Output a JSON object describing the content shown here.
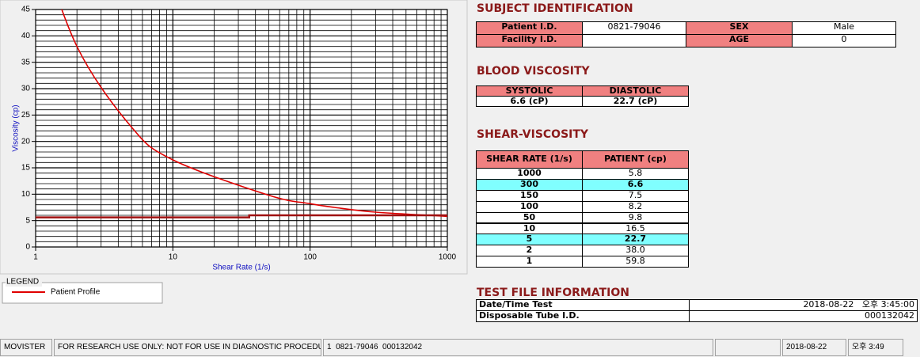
{
  "chart_data": {
    "type": "line",
    "x_label": "Shear Rate (1/s)",
    "y_label": "Viscosity (cp)",
    "xlim": [
      1,
      1000
    ],
    "ylim": [
      0,
      45
    ],
    "xticks": [
      1,
      10,
      100,
      1000
    ],
    "yticks": [
      0,
      5,
      10,
      15,
      20,
      25,
      30,
      35,
      40,
      45
    ],
    "log_x": true,
    "grid": true,
    "minor_grid": true,
    "legend_title": "LEGEND",
    "legend_position": "below",
    "series": [
      {
        "name": "Patient Profile",
        "color": "#e00000",
        "x": [
          1,
          2,
          5,
          10,
          50,
          100,
          150,
          300,
          1000
        ],
        "values": [
          59.8,
          38.0,
          22.7,
          16.5,
          9.8,
          8.2,
          7.5,
          6.6,
          5.8
        ]
      },
      {
        "color": "#a01010",
        "x": [
          1,
          36,
          36,
          1000
        ],
        "values": [
          5.6,
          5.6,
          6,
          6
        ]
      }
    ]
  },
  "subject": {
    "title": "SUBJECT IDENTIFICATION",
    "rows": [
      [
        {
          "label": "Patient I.D.",
          "value": "0821-79046"
        },
        {
          "label": "SEX",
          "value": "Male"
        }
      ],
      [
        {
          "label": "Facility I.D."
        },
        {
          "label": "AGE",
          "value": "0"
        }
      ]
    ]
  },
  "blood": {
    "title": "BLOOD VISCOSITY",
    "headers": [
      "SYSTOLIC",
      "DIASTOLIC"
    ],
    "values": [
      "6.6 (cP)",
      "22.7 (cP)"
    ]
  },
  "shear": {
    "title": "SHEAR-VISCOSITY",
    "headers": [
      "SHEAR RATE (1/s)",
      "PATIENT (cp)"
    ],
    "rows": [
      {
        "cells": [
          "1000",
          "5.8"
        ]
      },
      {
        "cells": [
          "300",
          "6.6"
        ],
        "highlight": true
      },
      {
        "cells": [
          "150",
          "7.5"
        ]
      },
      {
        "cells": [
          "100",
          "8.2"
        ]
      },
      {
        "cells": [
          "50",
          "9.8"
        ]
      },
      {
        "cells": [
          "10",
          "16.5"
        ]
      },
      {
        "cells": [
          "5",
          "22.7"
        ],
        "highlight": true
      },
      {
        "cells": [
          "2",
          "38.0"
        ]
      },
      {
        "cells": [
          "1",
          "59.8"
        ]
      }
    ]
  },
  "test_file": {
    "title": "TEST FILE INFORMATION",
    "rows": [
      {
        "label": "Date/Time Test",
        "value": "2018-08-22   오후 3:45:00"
      },
      {
        "label": "Disposable Tube I.D.",
        "value": "000132042"
      }
    ]
  },
  "status_bar": [
    "MOVISTER",
    "FOR RESEARCH USE ONLY: NOT FOR USE IN DIAGNOSTIC PROCEDURES",
    "1  0821-79046  000132042",
    "2018-08-22",
    "오후 3:49"
  ]
}
